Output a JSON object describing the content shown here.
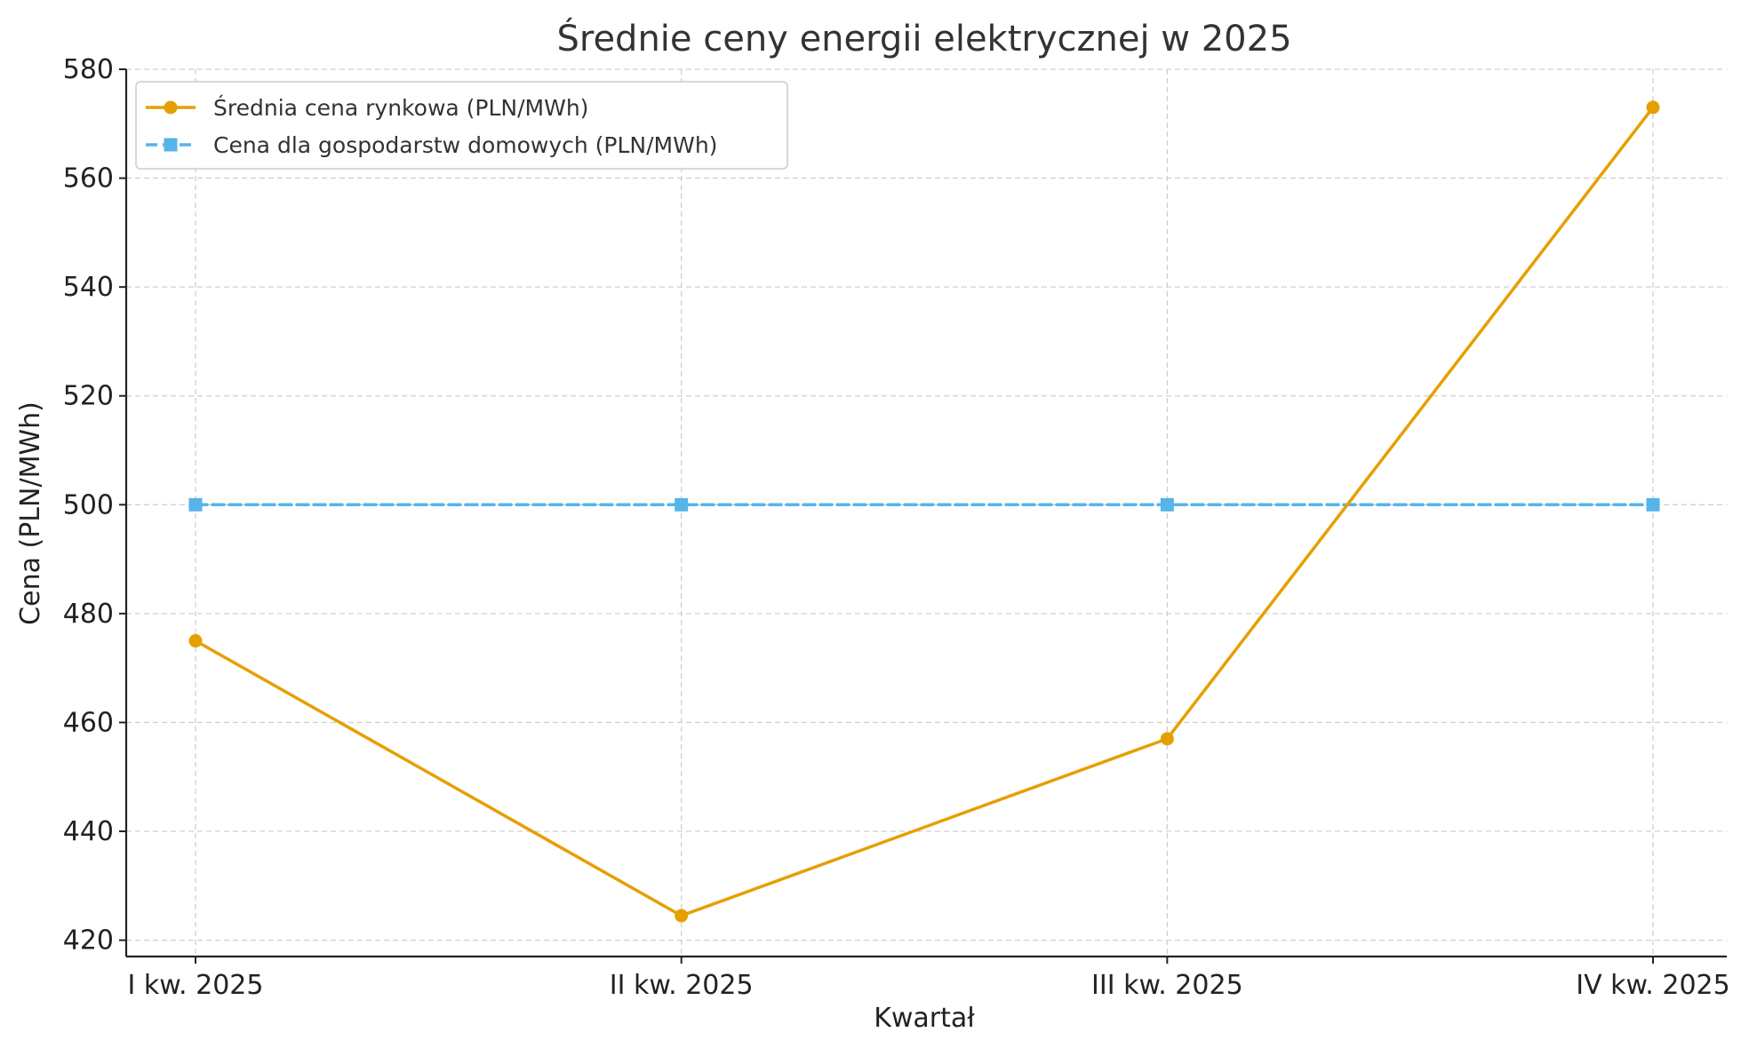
{
  "chart_data": {
    "type": "line",
    "title": "Średnie ceny energii elektrycznej w 2025",
    "xlabel": "Kwartał",
    "ylabel": "Cena (PLN/MWh)",
    "categories": [
      "I kw. 2025",
      "II kw. 2025",
      "III kw. 2025",
      "IV kw. 2025"
    ],
    "ylim": [
      417,
      580
    ],
    "yticks": [
      420,
      440,
      460,
      480,
      500,
      520,
      540,
      560,
      580
    ],
    "grid": true,
    "legend_position": "top-left",
    "series": [
      {
        "name": "Średnia cena rynkowa (PLN/MWh)",
        "values": [
          475,
          424.5,
          457,
          573
        ],
        "color": "#E69F00",
        "marker": "circle",
        "line_style": "solid"
      },
      {
        "name": "Cena dla gospodarstw domowych (PLN/MWh)",
        "values": [
          500,
          500,
          500,
          500
        ],
        "color": "#56B4E9",
        "marker": "square",
        "line_style": "dashed"
      }
    ]
  }
}
